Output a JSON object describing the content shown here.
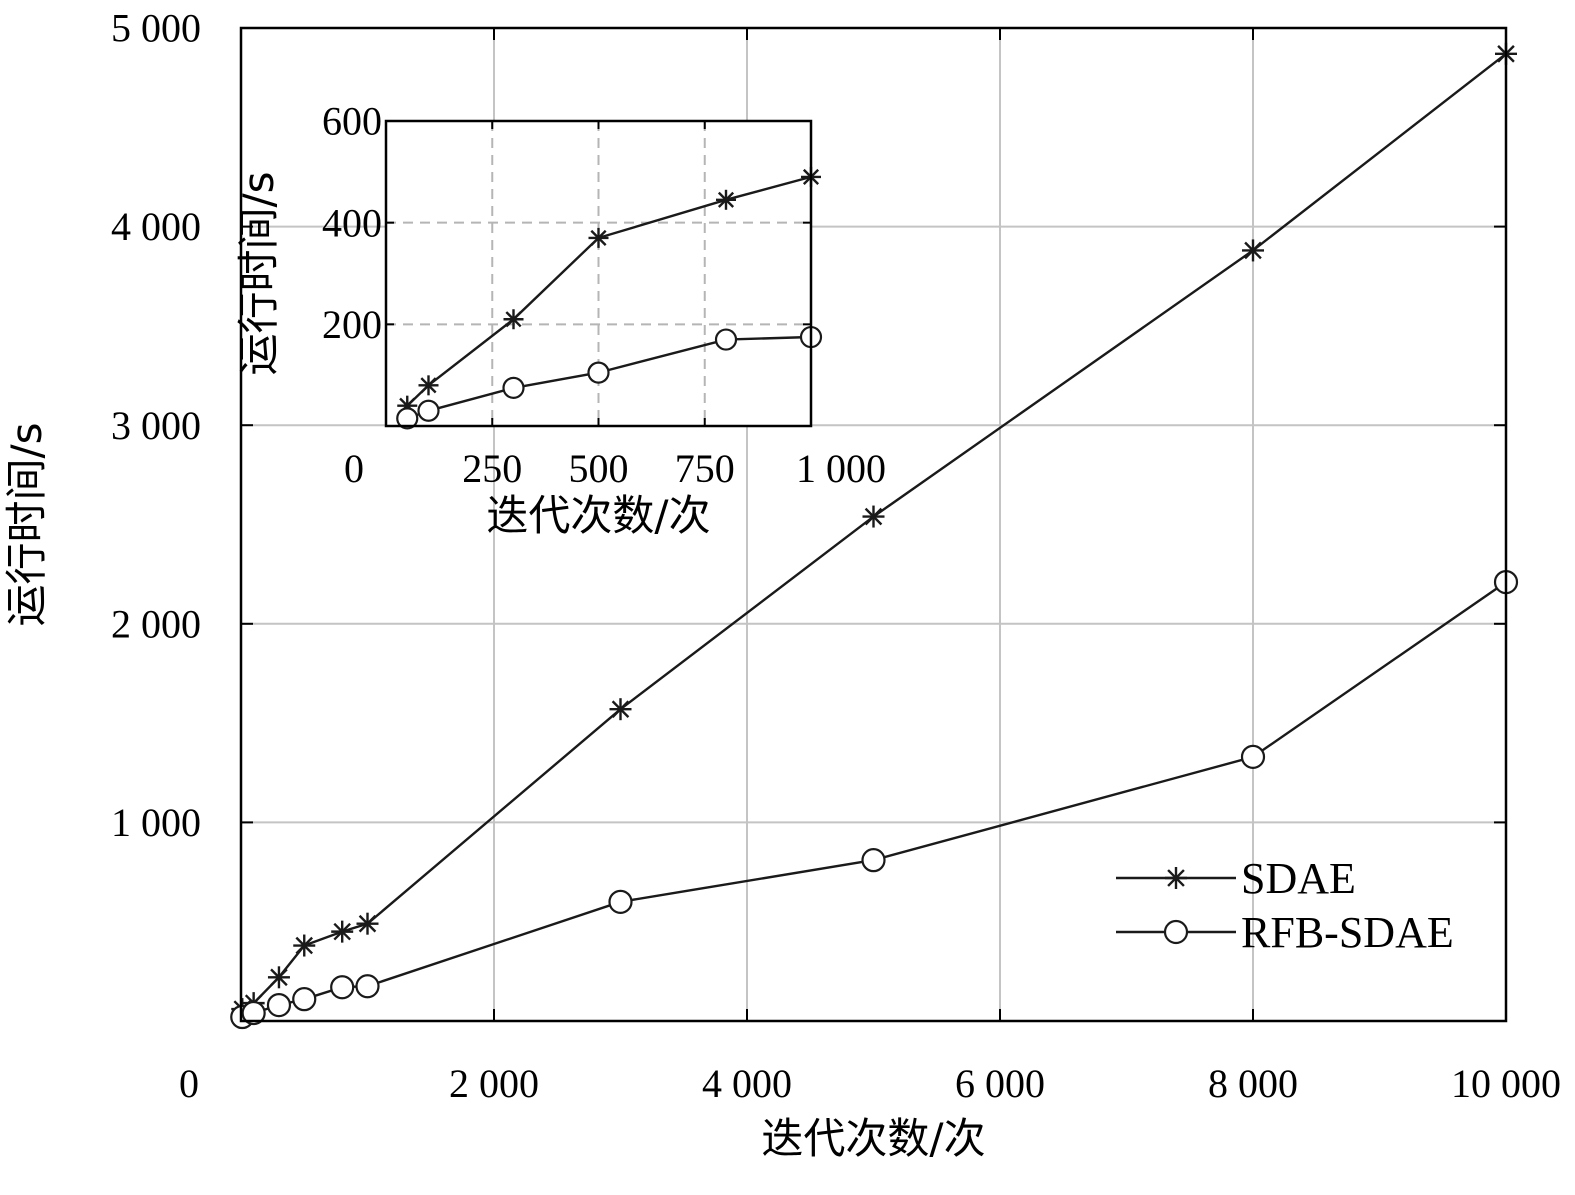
{
  "chart_data": [
    {
      "type": "line",
      "xlabel": "迭代次数/次",
      "ylabel": "运行时间/s",
      "xlim": [
        0,
        10000
      ],
      "ylim": [
        0,
        5000
      ],
      "xticks": [
        0,
        2000,
        4000,
        6000,
        8000,
        10000
      ],
      "xtick_labels": [
        "0",
        "2 000",
        "4 000",
        "6 000",
        "8 000",
        "10 000"
      ],
      "yticks": [
        1000,
        2000,
        3000,
        4000,
        5000
      ],
      "ytick_labels": [
        "1 000",
        "2 000",
        "3 000",
        "4 000",
        "5 000"
      ],
      "grid": true,
      "legend_position": "bottom-right",
      "series": [
        {
          "name": "SDAE",
          "marker": "asterisk",
          "x": [
            10,
            100,
            300,
            500,
            800,
            1000,
            3000,
            5000,
            8000,
            10000
          ],
          "y": [
            60,
            90,
            220,
            380,
            450,
            490,
            1570,
            2540,
            3880,
            4870
          ]
        },
        {
          "name": "RFB-SDAE",
          "marker": "circle",
          "x": [
            10,
            100,
            300,
            500,
            800,
            1000,
            3000,
            5000,
            8000,
            10000
          ],
          "y": [
            20,
            40,
            80,
            110,
            170,
            175,
            600,
            810,
            1330,
            2210
          ]
        }
      ]
    },
    {
      "type": "line",
      "xlabel": "迭代次数/次",
      "ylabel": "运行时间/s",
      "xlim": [
        0,
        1000
      ],
      "ylim": [
        0,
        600
      ],
      "xticks": [
        0,
        250,
        500,
        750,
        1000
      ],
      "xtick_labels": [
        "0",
        "250",
        "500",
        "750",
        "1 000"
      ],
      "yticks": [
        200,
        400,
        600
      ],
      "ytick_labels": [
        "200",
        "400",
        "600"
      ],
      "grid": true,
      "series": [
        {
          "name": "SDAE",
          "marker": "asterisk",
          "x": [
            50,
            100,
            300,
            500,
            800,
            1000
          ],
          "y": [
            40,
            80,
            210,
            370,
            445,
            490
          ]
        },
        {
          "name": "RFB-SDAE",
          "marker": "circle",
          "x": [
            50,
            100,
            300,
            500,
            800,
            1000
          ],
          "y": [
            15,
            30,
            75,
            105,
            170,
            175
          ]
        }
      ]
    }
  ]
}
